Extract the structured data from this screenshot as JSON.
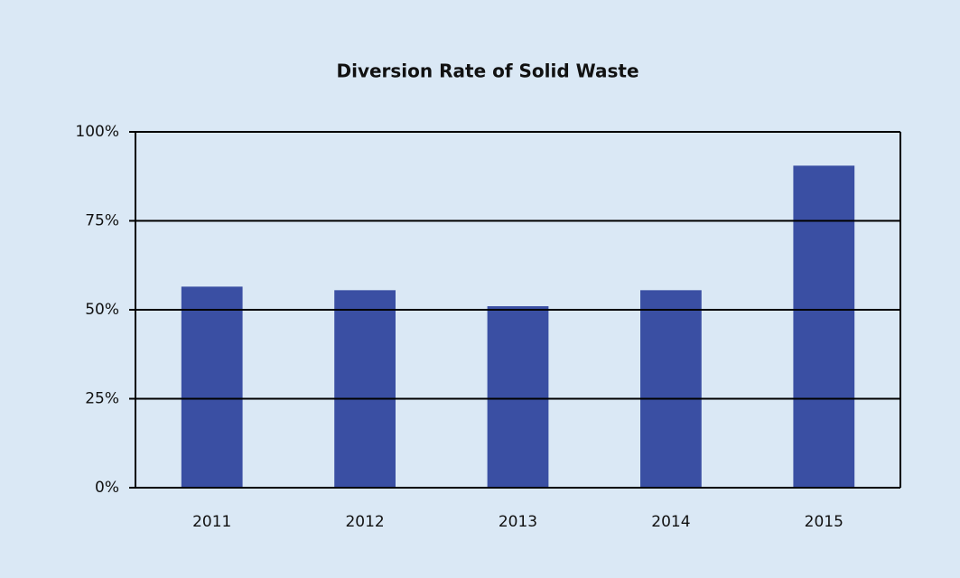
{
  "chart_data": {
    "type": "bar",
    "title": "Diversion Rate of Solid Waste",
    "categories": [
      "2011",
      "2012",
      "2013",
      "2014",
      "2015"
    ],
    "values": [
      56.5,
      55.5,
      51,
      55.5,
      90.5
    ],
    "color": "#3a4fa3",
    "ylim": [
      0,
      100
    ],
    "yticks": [
      {
        "value": 0,
        "label": "0%"
      },
      {
        "value": 25,
        "label": "25%"
      },
      {
        "value": 50,
        "label": "50%"
      },
      {
        "value": 75,
        "label": "75%"
      },
      {
        "value": 100,
        "label": "100%"
      }
    ],
    "grid": true
  }
}
